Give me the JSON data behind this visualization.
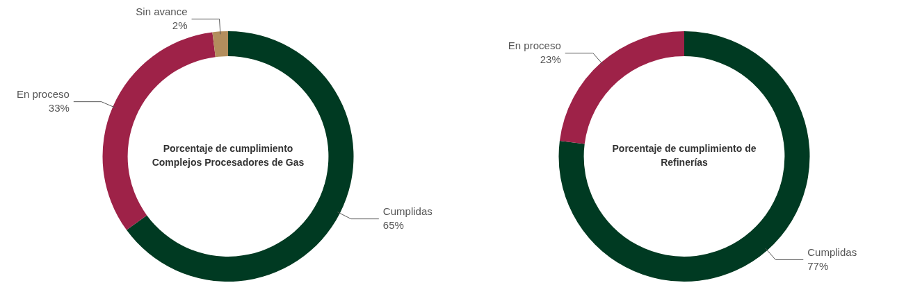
{
  "chart_data": [
    {
      "type": "donut",
      "title": "Porcentaje de cumplimiento Complejos Procesadores de Gas",
      "categories": [
        "Cumplidas",
        "En proceso",
        "Sin avance"
      ],
      "values": [
        65,
        33,
        2
      ],
      "colors": [
        "#003a22",
        "#9e2248",
        "#b38e5d"
      ],
      "value_labels": [
        "65%",
        "33%",
        "2%"
      ]
    },
    {
      "type": "donut",
      "title": "Porcentaje de cumplimiento de Refinerías",
      "categories": [
        "Cumplidas",
        "En proceso"
      ],
      "values": [
        77,
        23
      ],
      "colors": [
        "#003a22",
        "#9e2248"
      ],
      "value_labels": [
        "77%",
        "23%"
      ]
    }
  ]
}
